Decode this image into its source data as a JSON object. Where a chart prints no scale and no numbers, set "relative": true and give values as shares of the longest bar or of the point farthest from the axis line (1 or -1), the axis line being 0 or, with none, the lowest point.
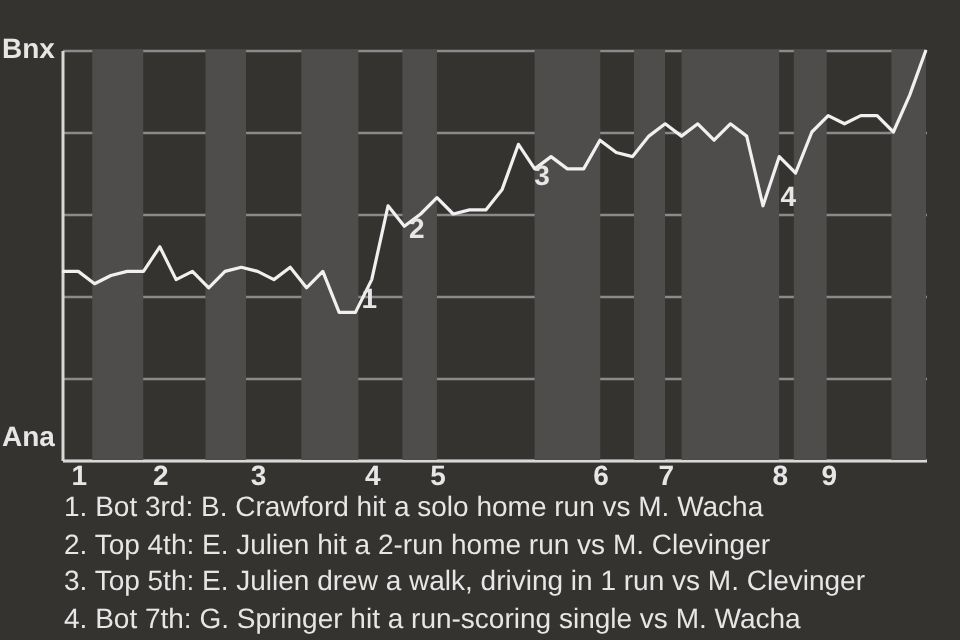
{
  "chart_data": {
    "type": "line",
    "relative": true,
    "grid": "y",
    "categories": [
      null,
      "1",
      null,
      null,
      null,
      null,
      "2",
      null,
      null,
      null,
      null,
      null,
      "3",
      null,
      null,
      null,
      null,
      null,
      null,
      "4",
      null,
      null,
      null,
      "5",
      null,
      null,
      null,
      null,
      null,
      null,
      null,
      null,
      null,
      "6",
      null,
      null,
      null,
      "7",
      null,
      null,
      null,
      null,
      null,
      null,
      "8",
      null,
      null,
      "9",
      null,
      null,
      null,
      null,
      null,
      null
    ],
    "series": [
      {
        "color": "#f0f0f0",
        "values": [
          0.46,
          0.46,
          0.43,
          0.45,
          0.46,
          0.46,
          0.52,
          0.44,
          0.46,
          0.42,
          0.46,
          0.47,
          0.46,
          0.44,
          0.47,
          0.42,
          0.46,
          0.36,
          0.36,
          0.44,
          0.62,
          0.57,
          0.6,
          0.64,
          0.6,
          0.61,
          0.61,
          0.66,
          0.77,
          0.71,
          0.74,
          0.71,
          0.71,
          0.78,
          0.75,
          0.74,
          0.79,
          0.82,
          0.79,
          0.82,
          0.78,
          0.82,
          0.79,
          0.62,
          0.74,
          0.7,
          0.8,
          0.84,
          0.82,
          0.84,
          0.84,
          0.8,
          0.89,
          1.0
        ]
      }
    ],
    "annotations": [
      "Bnx",
      "Ana",
      "1",
      "2",
      "3",
      "4",
      "1. Bot 3rd: B. Crawford hit a solo home run vs M. Wacha",
      "2. Top 4th: E. Julien hit a 2-run home run vs M. Clevinger",
      "3. Top 5th: E. Julien drew a walk, driving in 1 run vs M. Clevinger",
      "4. Bot 7th: G. Springer hit a run-scoring single vs M. Wacha"
    ]
  }
}
